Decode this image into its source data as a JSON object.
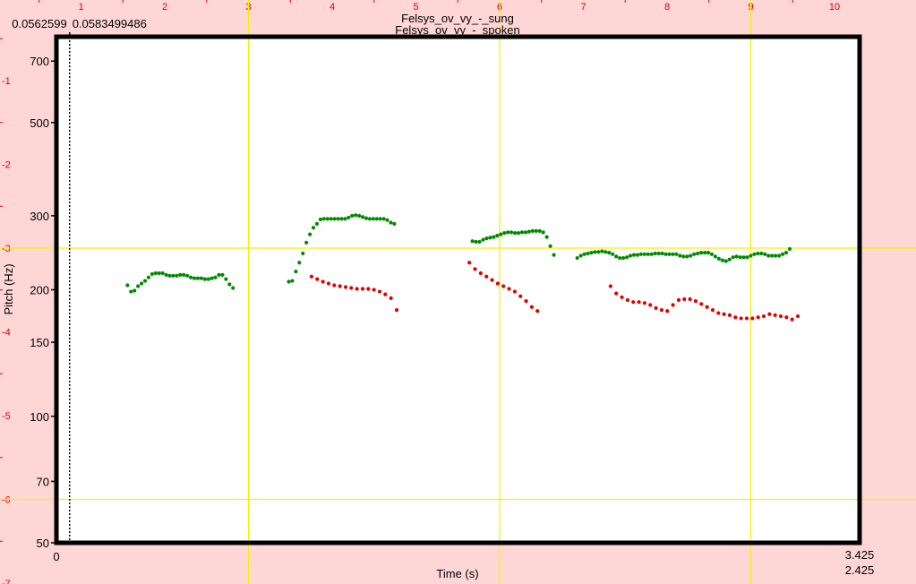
{
  "chart_data": {
    "type": "scatter",
    "titles": [
      "Felsys_ov_vy_-_sung",
      "Felsys_ov_vy_-_spoken"
    ],
    "xlabel": "Time (s)",
    "ylabel": "Pitch (Hz)",
    "xlim": [
      0,
      3.425
    ],
    "ylim": [
      50,
      800
    ],
    "yscale": "log",
    "x_tick_labels": [
      "0",
      "3.425",
      "2.425"
    ],
    "y_ticks": [
      50,
      70,
      100,
      150,
      200,
      300,
      500,
      700
    ],
    "y_tick_labels": [
      "50",
      "70",
      "100",
      "150",
      "200",
      "300",
      "500",
      "700"
    ],
    "cursor": {
      "time": 0.0562,
      "labels": [
        "0.0562599",
        "0.0583499486"
      ]
    },
    "series": [
      {
        "name": "sung",
        "color": "#008a00",
        "segments": [
          {
            "t0": 0.303,
            "dt": 0.015,
            "hz": [
              205,
              198,
              199,
              204,
              207,
              210,
              214,
              218,
              219,
              219,
              219,
              217,
              216,
              216,
              216,
              217,
              217,
              216,
              214,
              213,
              213,
              213,
              212,
              212,
              213,
              214,
              217,
              217,
              212,
              206,
              202
            ]
          },
          {
            "t0": 0.991,
            "dt": 0.015,
            "hz": [
              209,
              210,
              221,
              232,
              244,
              259,
              271,
              281,
              287,
              294,
              295,
              295,
              295,
              295,
              295,
              295,
              295,
              297,
              300,
              301,
              300,
              298,
              296,
              295,
              295,
              295,
              295,
              295,
              293,
              289,
              287
            ]
          },
          {
            "t0": 1.774,
            "dt": 0.0151,
            "hz": [
              261,
              260,
              260,
              263,
              265,
              266,
              267,
              269,
              271,
              273,
              274,
              274,
              273,
              273,
              274,
              274,
              275,
              276,
              276,
              276,
              274,
              267,
              254,
              242
            ]
          },
          {
            "t0": 2.221,
            "dt": 0.0151,
            "hz": [
              238,
              241,
              243,
              244,
              245,
              246,
              246,
              247,
              246,
              245,
              243,
              240,
              238,
              238,
              239,
              241,
              242,
              242,
              243,
              243,
              243,
              243,
              244,
              244,
              244,
              243,
              243,
              243,
              243,
              241,
              240,
              240,
              241,
              243,
              244,
              245,
              245,
              245,
              243,
              240,
              237,
              235,
              234,
              236,
              239,
              240,
              239,
              239,
              239,
              241,
              243,
              244,
              244,
              243,
              241,
              241,
              241,
              241,
              243,
              245,
              250
            ]
          }
        ]
      },
      {
        "name": "spoken",
        "color": "#e00000",
        "segments": [
          {
            "t0": 1.088,
            "dt": 0.0242,
            "hz": [
              215,
              212,
              209,
              207,
              205,
              204,
              203,
              202,
              201,
              201,
              201,
              200,
              198,
              195,
              191,
              179
            ]
          },
          {
            "t0": 1.761,
            "dt": 0.0242,
            "hz": [
              232,
              224,
              219,
              215,
              211,
              207,
              204,
              201,
              198,
              193,
              188,
              182,
              178
            ]
          },
          {
            "t0": 2.363,
            "dt": 0.0242,
            "hz": [
              204,
              196,
              192,
              189,
              187,
              187,
              186,
              184,
              181,
              179,
              178,
              184,
              189,
              190,
              190,
              188,
              185,
              182,
              179,
              176,
              175,
              174,
              172,
              171,
              171,
              171,
              172,
              173,
              175,
              174,
              173,
              172,
              170,
              173
            ]
          }
        ]
      }
    ]
  },
  "ruler": {
    "top_labels": [
      "1",
      "2",
      "3",
      "4",
      "5",
      "6",
      "7",
      "8",
      "9",
      "10"
    ],
    "left_labels": [
      "-1",
      "-2",
      "-3",
      "-4",
      "-5",
      "-6",
      "-7"
    ],
    "ruler_color": "#e00000",
    "grid_color": "#f5f000"
  }
}
